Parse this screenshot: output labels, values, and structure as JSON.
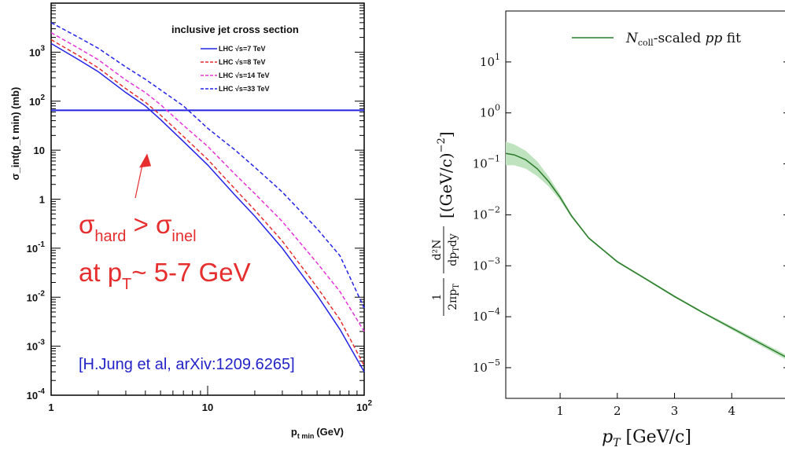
{
  "chart_data": [
    {
      "type": "line",
      "title": "inclusive jet cross section",
      "ylabel": "σ_int(p_t min) (mb)",
      "xlabel_main": "p",
      "xlabel_sub": "t min",
      "xlabel_unit": "(GeV)",
      "xscale": "log",
      "yscale": "log",
      "xlim": [
        1,
        100
      ],
      "ylim": [
        0.0001,
        10000
      ],
      "x_ticks": [
        {
          "v": 1,
          "label": "1"
        },
        {
          "v": 10,
          "label": "10"
        },
        {
          "v": 100,
          "label": "10",
          "sup": "2"
        }
      ],
      "y_ticks": [
        {
          "v": 0.0001,
          "label": "10",
          "sup": "-4"
        },
        {
          "v": 0.001,
          "label": "10",
          "sup": "-3"
        },
        {
          "v": 0.01,
          "label": "10",
          "sup": "-2"
        },
        {
          "v": 0.1,
          "label": "10",
          "sup": "-1"
        },
        {
          "v": 1,
          "label": "1"
        },
        {
          "v": 10,
          "label": "10"
        },
        {
          "v": 100,
          "label": "10",
          "sup": "2"
        },
        {
          "v": 1000,
          "label": "10",
          "sup": "3"
        }
      ],
      "legend_position": "top-right",
      "series": [
        {
          "name": "LHC √s=7 TeV",
          "color": "#2323e6",
          "dash": "solid",
          "x": [
            1,
            1.5,
            2,
            3,
            4,
            5,
            7,
            10,
            15,
            20,
            30,
            50,
            70,
            100
          ],
          "y": [
            1500,
            700,
            400,
            150,
            80,
            42,
            15,
            5,
            1.2,
            0.45,
            0.1,
            0.011,
            0.0022,
            0.0003
          ]
        },
        {
          "name": "LHC √s=8 TeV",
          "color": "#e62e2e",
          "dash": "dashed",
          "x": [
            1,
            1.5,
            2,
            3,
            4,
            5,
            7,
            10,
            15,
            20,
            30,
            50,
            70,
            100
          ],
          "y": [
            1800,
            850,
            480,
            180,
            95,
            52,
            19,
            6.5,
            1.6,
            0.6,
            0.14,
            0.016,
            0.0035,
            0.0004
          ]
        },
        {
          "name": "LHC √s=14 TeV",
          "color": "#e633d9",
          "dash": "dashed",
          "x": [
            1,
            1.5,
            2,
            3,
            4,
            5,
            7,
            10,
            15,
            20,
            30,
            50,
            70,
            100
          ],
          "y": [
            2500,
            1200,
            700,
            270,
            150,
            85,
            32,
            12,
            3.2,
            1.3,
            0.35,
            0.05,
            0.013,
            0.002
          ]
        },
        {
          "name": "LHC √s=33 TeV",
          "color": "#2323e6",
          "dash": "dashed",
          "x": [
            1,
            1.5,
            2,
            3,
            4,
            5,
            7,
            10,
            15,
            20,
            30,
            50,
            70,
            100
          ],
          "y": [
            4000,
            2000,
            1200,
            500,
            280,
            170,
            80,
            28,
            10,
            4.5,
            1.4,
            0.25,
            0.07,
            0.006
          ]
        }
      ],
      "hline": {
        "y": 65,
        "color": "#2323e6"
      },
      "annotations": {
        "sigma": "σ",
        "hard": "hard",
        "gt": " > ",
        "inel": "inel",
        "at_p": "at p",
        "T": "T",
        "range": "~ 5-7 GeV",
        "reference": "[H.Jung et al, arXiv:1209.6265]",
        "arrow_to": {
          "x": 4.3,
          "y": 65
        }
      }
    },
    {
      "type": "line",
      "xscale": "linear",
      "yscale": "log",
      "xlim": [
        0.05,
        5.0
      ],
      "ylim": [
        2.5e-06,
        100
      ],
      "x_ticks": [
        1,
        2,
        3,
        4
      ],
      "y_ticks": [
        {
          "v": 10,
          "exp": "1"
        },
        {
          "v": 1,
          "exp": "0"
        },
        {
          "v": 0.1,
          "exp": "−1"
        },
        {
          "v": 0.01,
          "exp": "−2"
        },
        {
          "v": 0.001,
          "exp": "−3"
        },
        {
          "v": 0.0001,
          "exp": "−4"
        },
        {
          "v": 1e-05,
          "exp": "−5"
        }
      ],
      "xlabel": {
        "pre": "p",
        "sub": "T",
        "post": " [GeV/c]"
      },
      "ylabel": {
        "frac1": "1",
        "frac1_den": "2πp",
        "frac1_den_sub": "T",
        "frac2_num": "d²N",
        "frac2_den": "dp",
        "frac2_den_sub": "T",
        "frac2_den_post": "dy",
        "unit": "[(GeV/c)",
        "unit_exp": "−2",
        "unit_end": "]"
      },
      "legend_position": "top-right",
      "series": [
        {
          "name_pre": "N",
          "name_sub": "coll",
          "name_post": "-scaled ",
          "name_italic": "pp",
          "name_end": " fit",
          "color": "#2a7a2a",
          "band_color": "#bfe3bf",
          "x": [
            0.05,
            0.2,
            0.4,
            0.6,
            0.8,
            1.0,
            1.2,
            1.5,
            2.0,
            2.5,
            3.0,
            3.5,
            4.0,
            4.5,
            5.0
          ],
          "y": [
            0.16,
            0.15,
            0.12,
            0.08,
            0.045,
            0.022,
            0.0095,
            0.0035,
            0.0012,
            0.00055,
            0.00025,
            0.00012,
            6e-05,
            3e-05,
            1.5e-05
          ],
          "band_factor": [
            1.7,
            1.6,
            1.5,
            1.4,
            1.25,
            1.15,
            1.08,
            1.05,
            1.05,
            1.05,
            1.05,
            1.05,
            1.08,
            1.1,
            1.12
          ]
        }
      ]
    }
  ]
}
